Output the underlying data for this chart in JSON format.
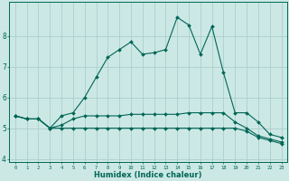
{
  "xlabel": "Humidex (Indice chaleur)",
  "background_color": "#cce8e5",
  "grid_color": "#aad0cc",
  "line_color": "#006655",
  "x": [
    0,
    1,
    2,
    3,
    4,
    5,
    6,
    7,
    8,
    9,
    10,
    11,
    12,
    13,
    14,
    15,
    16,
    17,
    18,
    19,
    20,
    21,
    22,
    23
  ],
  "series1": [
    5.4,
    5.3,
    5.3,
    5.0,
    5.4,
    5.5,
    6.0,
    6.65,
    7.3,
    7.55,
    7.8,
    7.4,
    7.45,
    7.55,
    8.6,
    8.35,
    7.4,
    8.3,
    6.8,
    5.5,
    5.5,
    5.2,
    4.8,
    4.7
  ],
  "series2": [
    5.4,
    5.3,
    5.3,
    5.0,
    5.1,
    5.3,
    5.4,
    5.4,
    5.4,
    5.4,
    5.45,
    5.45,
    5.45,
    5.45,
    5.45,
    5.5,
    5.5,
    5.5,
    5.5,
    5.2,
    5.0,
    4.75,
    4.65,
    4.55
  ],
  "series3": [
    5.4,
    5.3,
    5.3,
    5.0,
    5.0,
    5.0,
    5.0,
    5.0,
    5.0,
    5.0,
    5.0,
    5.0,
    5.0,
    5.0,
    5.0,
    5.0,
    5.0,
    5.0,
    5.0,
    5.0,
    4.9,
    4.7,
    4.6,
    4.5
  ],
  "ylim": [
    3.9,
    9.1
  ],
  "yticks": [
    4,
    5,
    6,
    7,
    8
  ],
  "xticks": [
    0,
    1,
    2,
    3,
    4,
    5,
    6,
    7,
    8,
    9,
    10,
    11,
    12,
    13,
    14,
    15,
    16,
    17,
    18,
    19,
    20,
    21,
    22,
    23
  ]
}
